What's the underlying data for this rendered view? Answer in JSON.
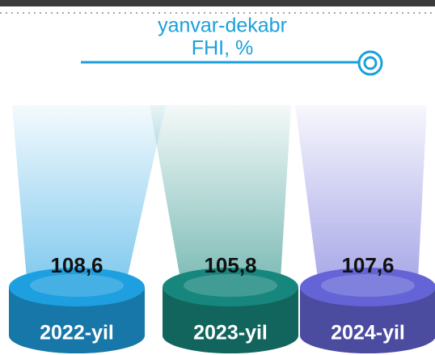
{
  "chart_data": {
    "type": "podium",
    "title": "yanvar-dekabr",
    "subtitle": "FHI, %",
    "categories": [
      "2022-yil",
      "2023-yil",
      "2024-yil"
    ],
    "values": [
      108.6,
      105.8,
      107.6
    ],
    "value_labels": [
      "108,6",
      "105,8",
      "107,6"
    ],
    "colors": [
      "#1e9fe0",
      "#17877d",
      "#6464d6"
    ]
  }
}
